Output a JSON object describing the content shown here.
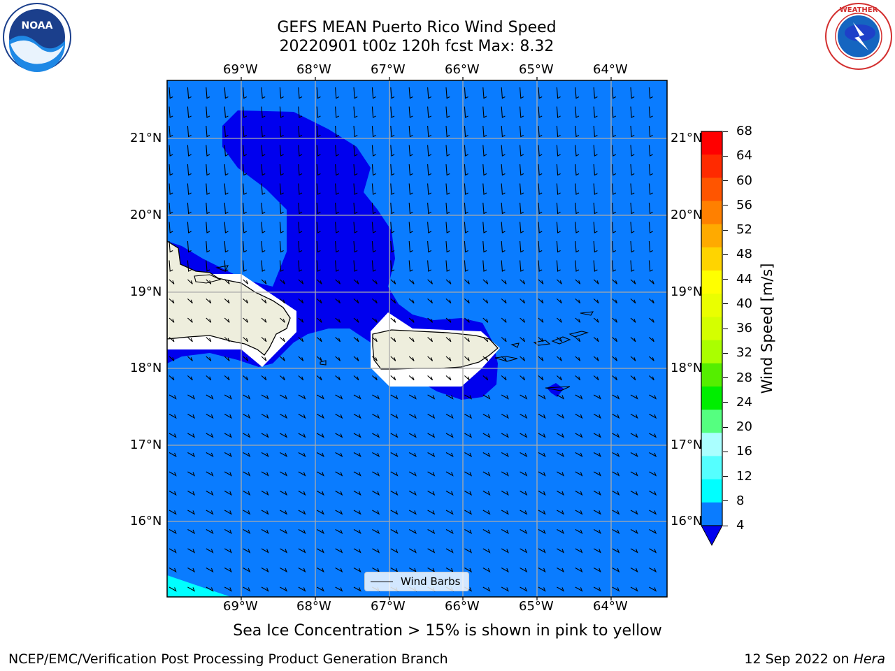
{
  "title": {
    "line1": "GEFS MEAN Puerto Rico Wind Speed",
    "line2": "20220901 t00z 120h fcst   Max: 8.32"
  },
  "logos": {
    "left": {
      "icon": "noaa-logo-icon",
      "text": "NOAA",
      "ring_text": "NATIONAL OCEANIC AND ATMOSPHERIC ADMINISTRATION · U.S. DEPARTMENT OF COMMERCE"
    },
    "right": {
      "icon": "nws-logo-icon",
      "ring_text": "NATIONAL WEATHER SERVICE"
    }
  },
  "map": {
    "lon_labels": [
      "69°W",
      "68°W",
      "67°W",
      "66°W",
      "65°W",
      "64°W"
    ],
    "lat_labels": [
      "21°N",
      "20°N",
      "19°N",
      "18°N",
      "17°N",
      "16°N"
    ],
    "legend_label": "Wind Barbs",
    "background_color": "#0a7cff",
    "low_speed_color": "#0000ee",
    "high_speed_color": "#00ffff",
    "land_color": "#eeeedd"
  },
  "colorbar": {
    "label": "Wind Speed [m/s]",
    "ticks": [
      "68",
      "64",
      "60",
      "56",
      "52",
      "48",
      "44",
      "40",
      "36",
      "32",
      "28",
      "24",
      "20",
      "16",
      "12",
      "8",
      "4"
    ],
    "colors": [
      "#ff0000",
      "#ff2a00",
      "#ff5500",
      "#ff8000",
      "#ffaa00",
      "#ffd400",
      "#ffff00",
      "#eaff00",
      "#d4ff00",
      "#aaff00",
      "#55ee00",
      "#00ee00",
      "#55ff80",
      "#aaffff",
      "#55ffff",
      "#00ffff",
      "#0a7cff"
    ],
    "extend_color": "#0000ee"
  },
  "caption": "Sea Ice Concentration > 15% is shown in pink to yellow",
  "footer": {
    "left": "NCEP/EMC/Verification Post Processing Product Generation Branch",
    "right_prefix": "12 Sep 2022 on",
    "right_host": "Hera"
  }
}
